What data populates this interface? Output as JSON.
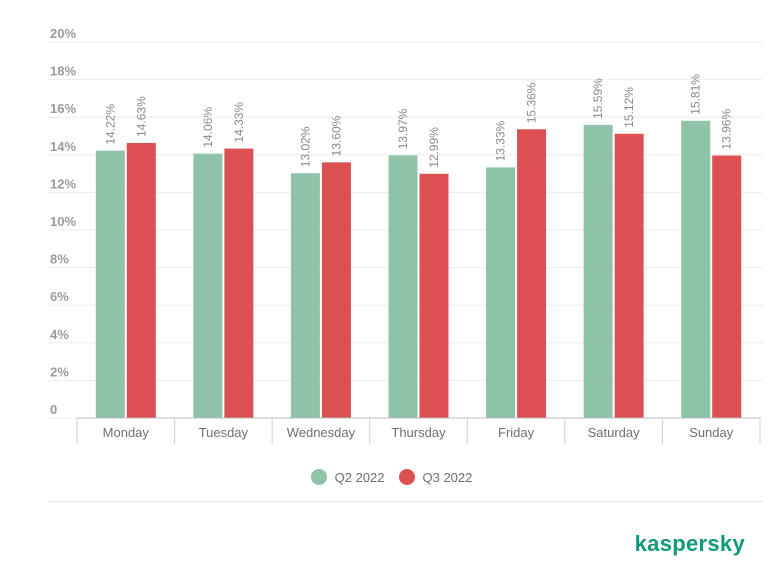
{
  "chart_data": {
    "type": "bar",
    "categories": [
      "Monday",
      "Tuesday",
      "Wednesday",
      "Thursday",
      "Friday",
      "Saturday",
      "Sunday"
    ],
    "series": [
      {
        "name": "Q2 2022",
        "color": "#8fc3a9",
        "values": [
          14.22,
          14.06,
          13.02,
          13.97,
          13.33,
          15.59,
          15.81
        ],
        "labels": [
          "14.22%",
          "14.06%",
          "13.02%",
          "13.97%",
          "13.33%",
          "15.59%",
          "15.81%"
        ]
      },
      {
        "name": "Q3 2022",
        "color": "#dc5052",
        "values": [
          14.63,
          14.33,
          13.6,
          12.99,
          15.36,
          15.12,
          13.96
        ],
        "labels": [
          "14.63%",
          "14.33%",
          "13.60%",
          "12.99%",
          "15.36%",
          "15.12%",
          "13.96%"
        ]
      }
    ],
    "yticks": [
      "0",
      "2%",
      "4%",
      "6%",
      "8%",
      "10%",
      "12%",
      "14%",
      "16%",
      "18%",
      "20%"
    ],
    "ylim": [
      0,
      20
    ],
    "grid": true,
    "legend": "bottom-center"
  },
  "legend": {
    "q2_label": "Q2 2022",
    "q3_label": "Q3 2022",
    "q2_color": "#8fc3a9",
    "q3_color": "#dc5052"
  },
  "brand": {
    "name": "kaspersky",
    "color": "#0f9a7a"
  }
}
